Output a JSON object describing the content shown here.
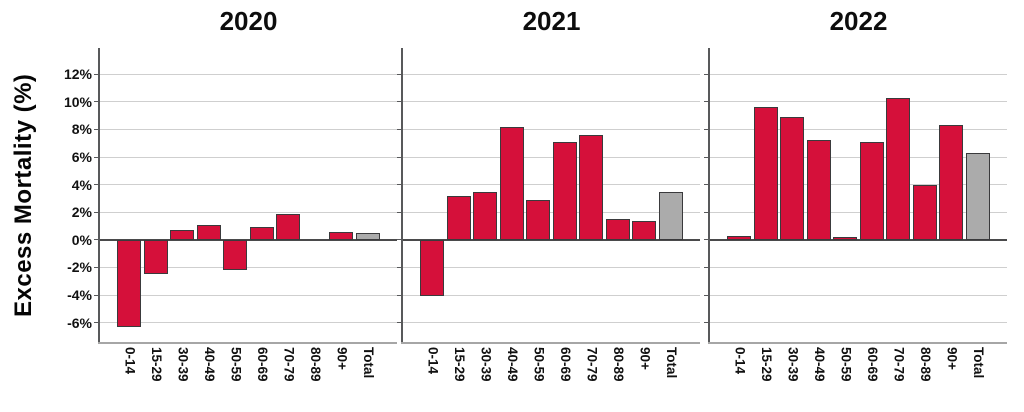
{
  "figure": {
    "y_axis_title": "Excess Mortality (%)"
  },
  "y_axis": {
    "tick_labels": [
      "12%",
      "10%",
      "8%",
      "6%",
      "4%",
      "2%",
      "0%",
      "-2%",
      "-4%",
      "-6%"
    ],
    "tick_values": [
      12,
      10,
      8,
      6,
      4,
      2,
      0,
      -2,
      -4,
      -6
    ]
  },
  "colors": {
    "age_bar": "#d5103a",
    "total_bar": "#ababab",
    "bar_border": "#3a3a3c",
    "gridline": "#cfcfcf",
    "zero_line": "#4a4a4b",
    "y_axis_line": "#58595b",
    "x_axis_line": "#a6a6a6",
    "text": "#111111"
  },
  "chart_data": [
    {
      "type": "bar",
      "title": "2020",
      "categories": [
        "0-14",
        "15-29",
        "30-39",
        "40-49",
        "50-59",
        "60-69",
        "70-79",
        "80-89",
        "90+",
        "Total"
      ],
      "values": [
        -6.3,
        -2.5,
        0.7,
        1.1,
        -2.2,
        0.9,
        1.9,
        0.0,
        0.6,
        0.5
      ],
      "xlabel": "",
      "ylabel": "Excess Mortality (%)",
      "ylim": [
        -7.4,
        13.9
      ],
      "grid": "horizontal",
      "legend": "none"
    },
    {
      "type": "bar",
      "title": "2021",
      "categories": [
        "0-14",
        "15-29",
        "30-39",
        "40-49",
        "50-59",
        "60-69",
        "70-79",
        "80-89",
        "90+",
        "Total"
      ],
      "values": [
        -4.1,
        3.2,
        3.5,
        8.2,
        2.9,
        7.1,
        7.6,
        1.5,
        1.4,
        3.5
      ],
      "xlabel": "",
      "ylabel": "Excess Mortality (%)",
      "ylim": [
        -7.4,
        13.9
      ],
      "grid": "horizontal",
      "legend": "none"
    },
    {
      "type": "bar",
      "title": "2022",
      "categories": [
        "0-14",
        "15-29",
        "30-39",
        "40-49",
        "50-59",
        "60-69",
        "70-79",
        "80-89",
        "90+",
        "Total"
      ],
      "values": [
        0.3,
        9.6,
        8.9,
        7.2,
        0.2,
        7.1,
        10.3,
        4.0,
        8.3,
        6.3
      ],
      "xlabel": "",
      "ylabel": "Excess Mortality (%)",
      "ylim": [
        -7.4,
        13.9
      ],
      "grid": "horizontal",
      "legend": "none"
    }
  ]
}
